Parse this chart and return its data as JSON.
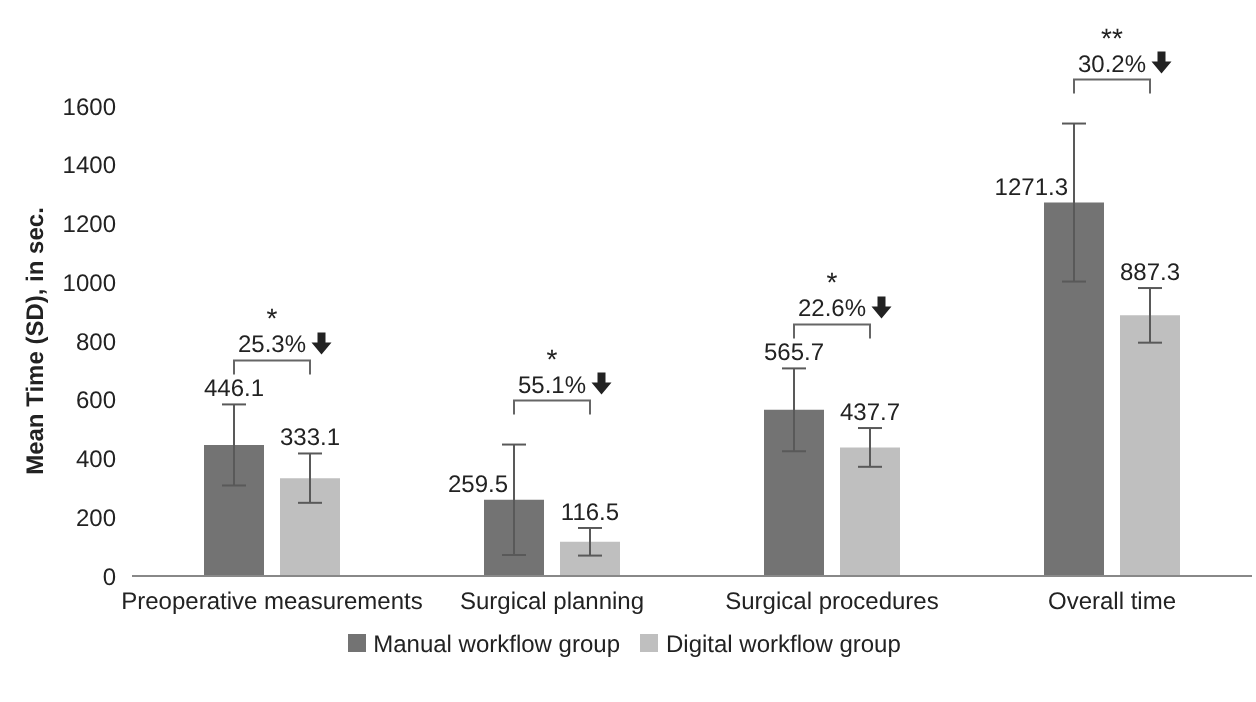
{
  "chart_data": {
    "type": "bar",
    "ylabel": "Mean Time (SD), in sec.",
    "categories": [
      "Preoperative measurements",
      "Surgical planning",
      "Surgical procedures",
      "Overall time"
    ],
    "series": [
      {
        "name": "Manual workflow group",
        "color": "#737373",
        "values": [
          446.1,
          259.5,
          565.7,
          1271.3
        ],
        "errors": [
          138,
          188,
          141,
          269
        ]
      },
      {
        "name": "Digital workflow group",
        "color": "#bfbfbf",
        "values": [
          333.1,
          116.5,
          437.7,
          887.3
        ],
        "errors": [
          84,
          47,
          66,
          93
        ]
      }
    ],
    "ylim": [
      0,
      1600
    ],
    "yticks": [
      0,
      200,
      400,
      600,
      800,
      1000,
      1200,
      1400,
      1600
    ],
    "data_labels": true,
    "legend": "bottom",
    "grid": false,
    "annotations": [
      "*",
      "25.3%",
      "*",
      "55.1%",
      "*",
      "22.6%",
      "**",
      "30.2%"
    ]
  }
}
